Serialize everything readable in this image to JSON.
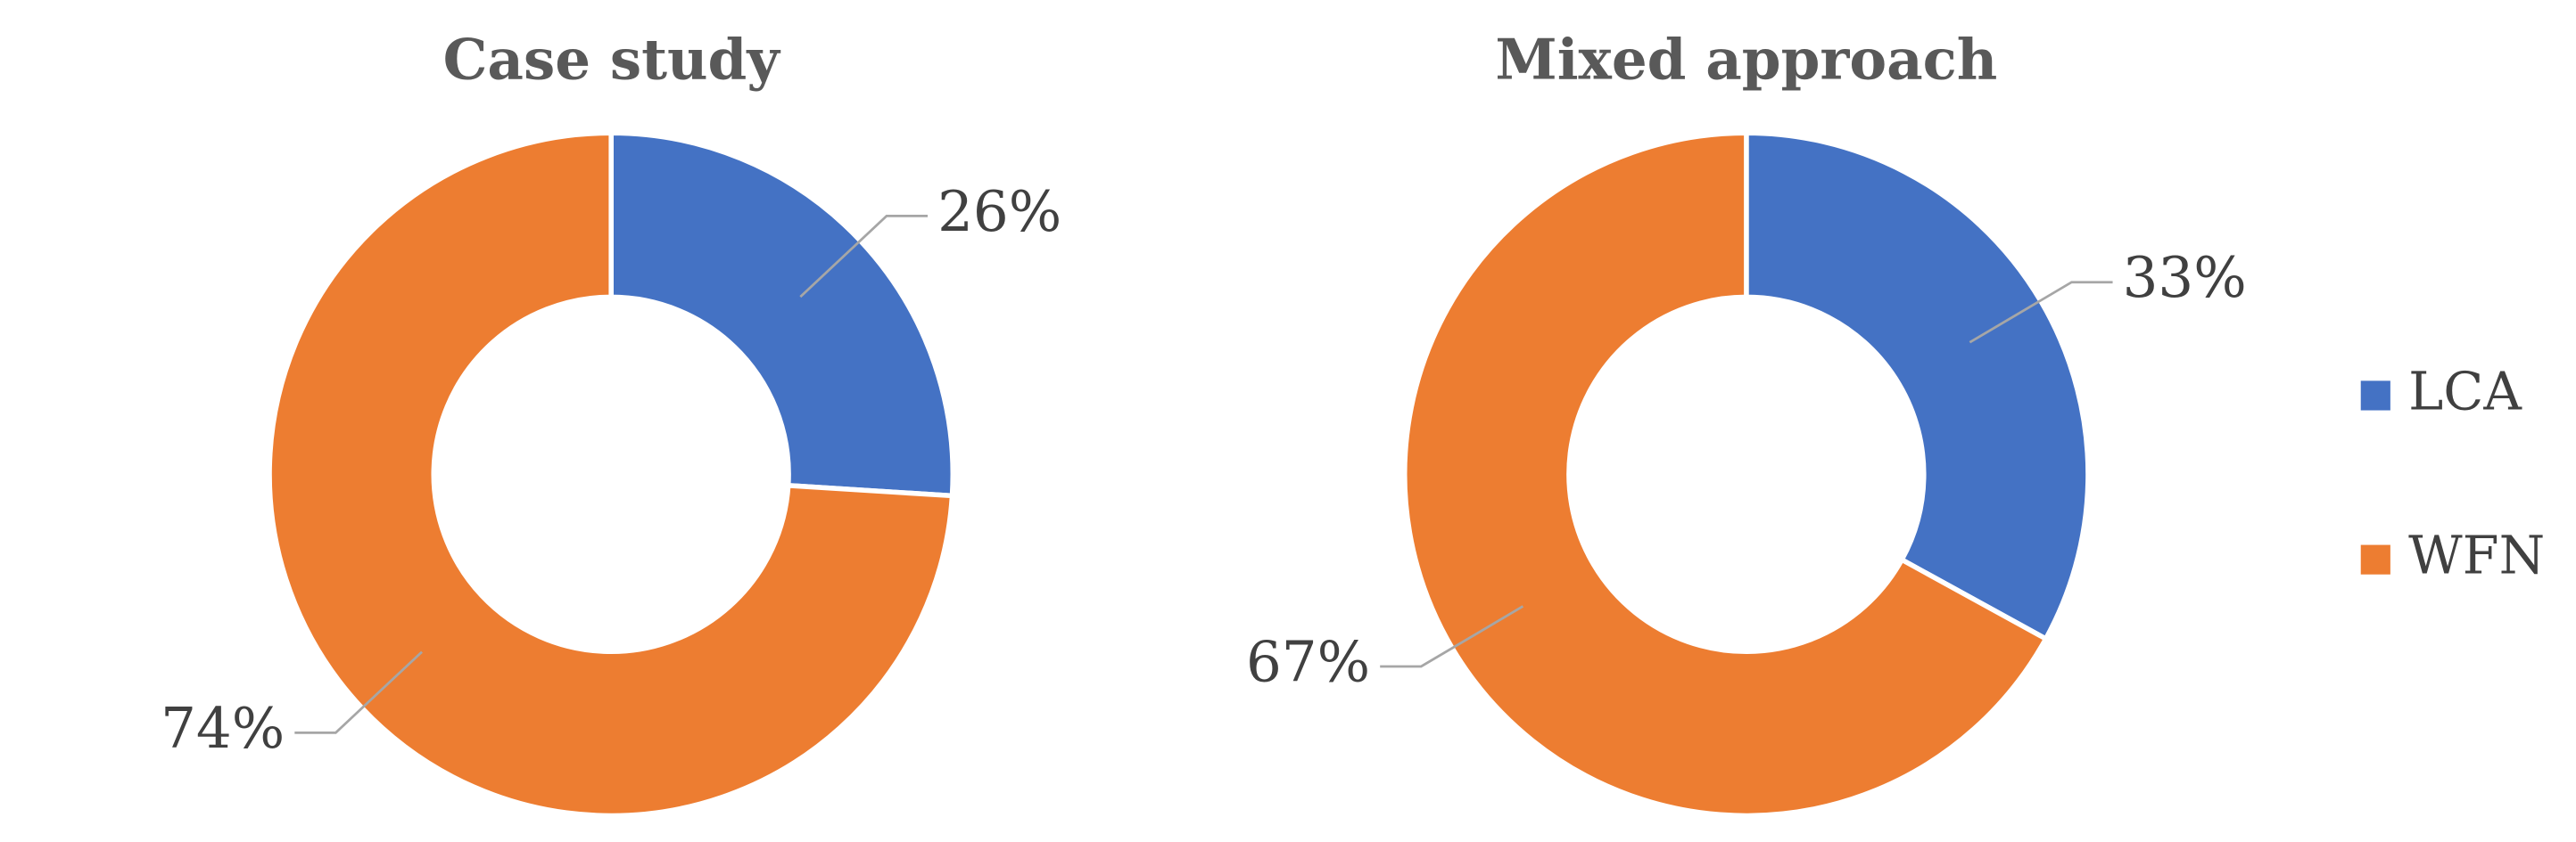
{
  "chart_data": [
    {
      "type": "donut",
      "title": "Case study",
      "categories": [
        "LCA",
        "WFN"
      ],
      "values": [
        26,
        74
      ],
      "value_labels": [
        "26%",
        "74%"
      ],
      "colors": [
        "#4472c4",
        "#ed7d31"
      ]
    },
    {
      "type": "donut",
      "title": "Mixed approach",
      "categories": [
        "LCA",
        "WFN"
      ],
      "values": [
        33,
        67
      ],
      "value_labels": [
        "33%",
        "67%"
      ],
      "colors": [
        "#4472c4",
        "#ed7d31"
      ]
    }
  ]
}
